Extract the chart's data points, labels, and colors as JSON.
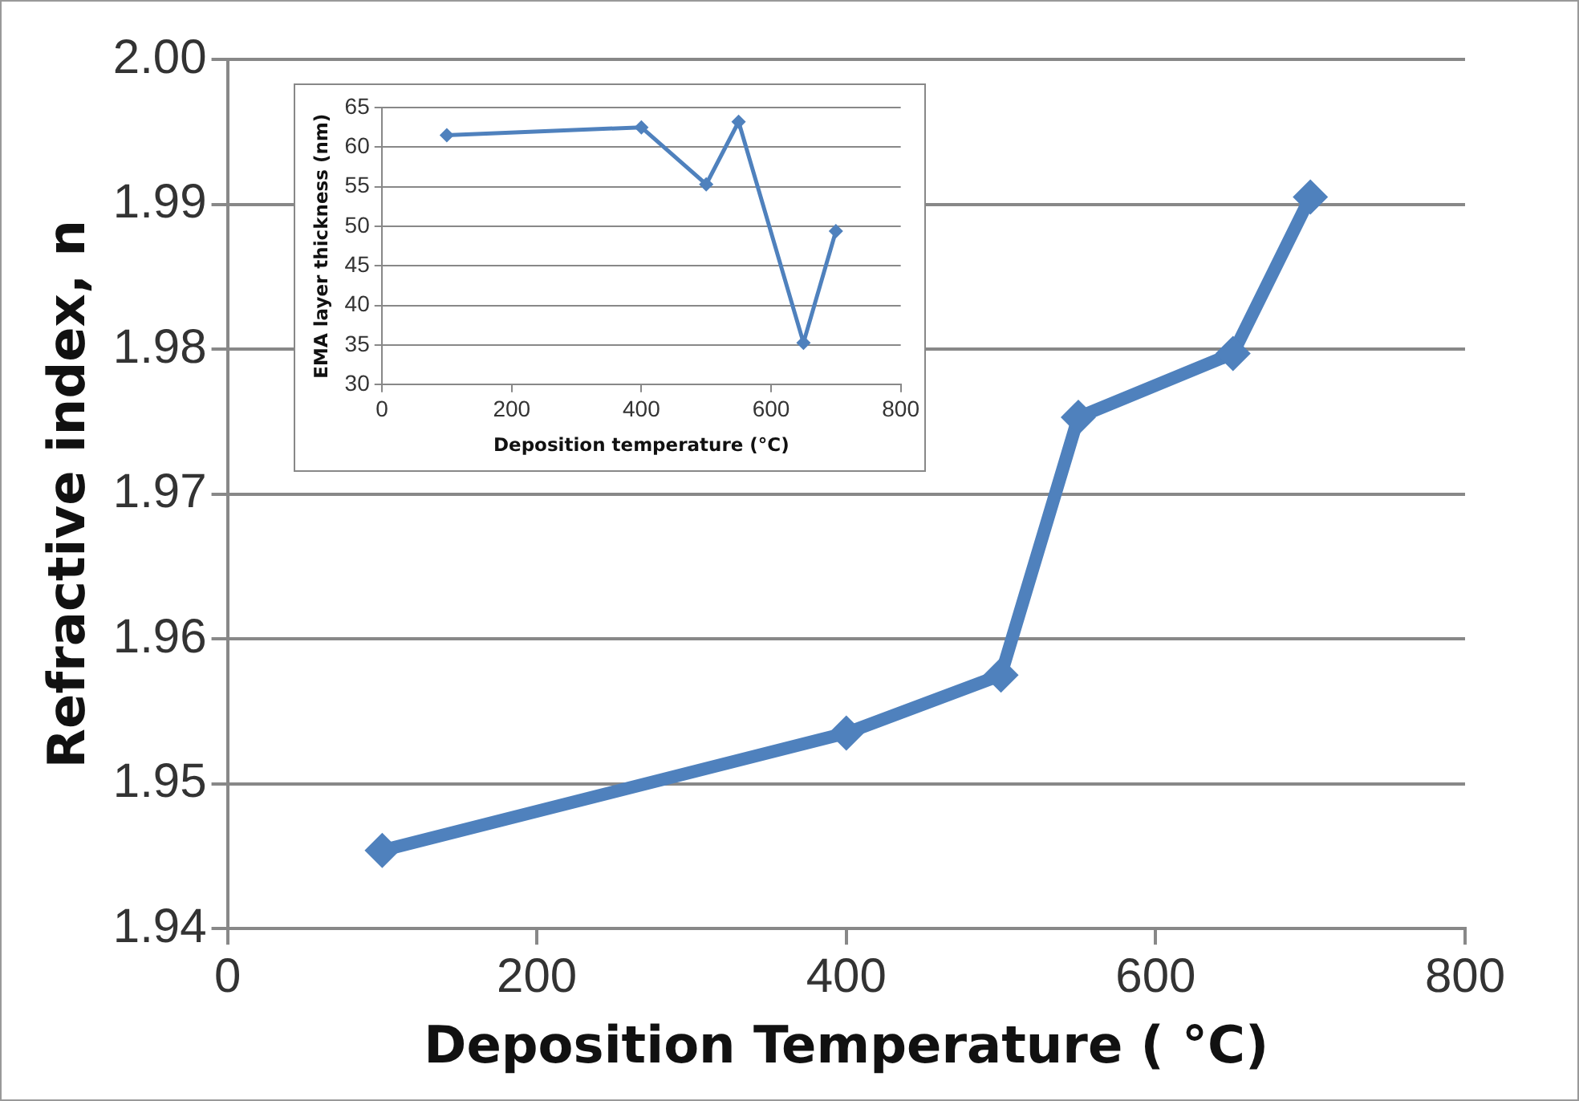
{
  "chart_data": [
    {
      "type": "line",
      "xlabel": "Deposition Temperature ( °C)",
      "ylabel": "Refractive index, n",
      "x": [
        100,
        400,
        500,
        550,
        650,
        700
      ],
      "series": [
        {
          "color": "#4f81bd",
          "values": [
            1.9454,
            1.9535,
            1.9575,
            1.9753,
            1.9797,
            1.9905
          ]
        }
      ],
      "xlim": [
        0,
        800
      ],
      "xticks": [
        0,
        200,
        400,
        600,
        800
      ],
      "ylim": [
        1.94,
        2.0
      ],
      "yticks": [
        1.94,
        1.95,
        1.96,
        1.97,
        1.98,
        1.99,
        {
          "value": 2.0,
          "label": "2.00"
        }
      ],
      "grid": "y",
      "legend": false,
      "marker": "diamond",
      "line_style": "solid"
    },
    {
      "type": "line",
      "xlabel": "Deposition temperature (°C)",
      "ylabel": "EMA layer thickness (nm)",
      "x": [
        100,
        400,
        500,
        550,
        650,
        700
      ],
      "series": [
        {
          "color": "#4f81bd",
          "values": [
            61.5,
            62.5,
            55.3,
            63.2,
            35.3,
            49.4
          ]
        }
      ],
      "xlim": [
        0,
        800
      ],
      "xticks": [
        0,
        200,
        400,
        600,
        800
      ],
      "ylim": [
        30,
        65
      ],
      "yticks": [
        30,
        35,
        40,
        45,
        50,
        55,
        60,
        65
      ],
      "grid": "y",
      "legend": false,
      "marker": "diamond",
      "line_style": "solid"
    }
  ]
}
